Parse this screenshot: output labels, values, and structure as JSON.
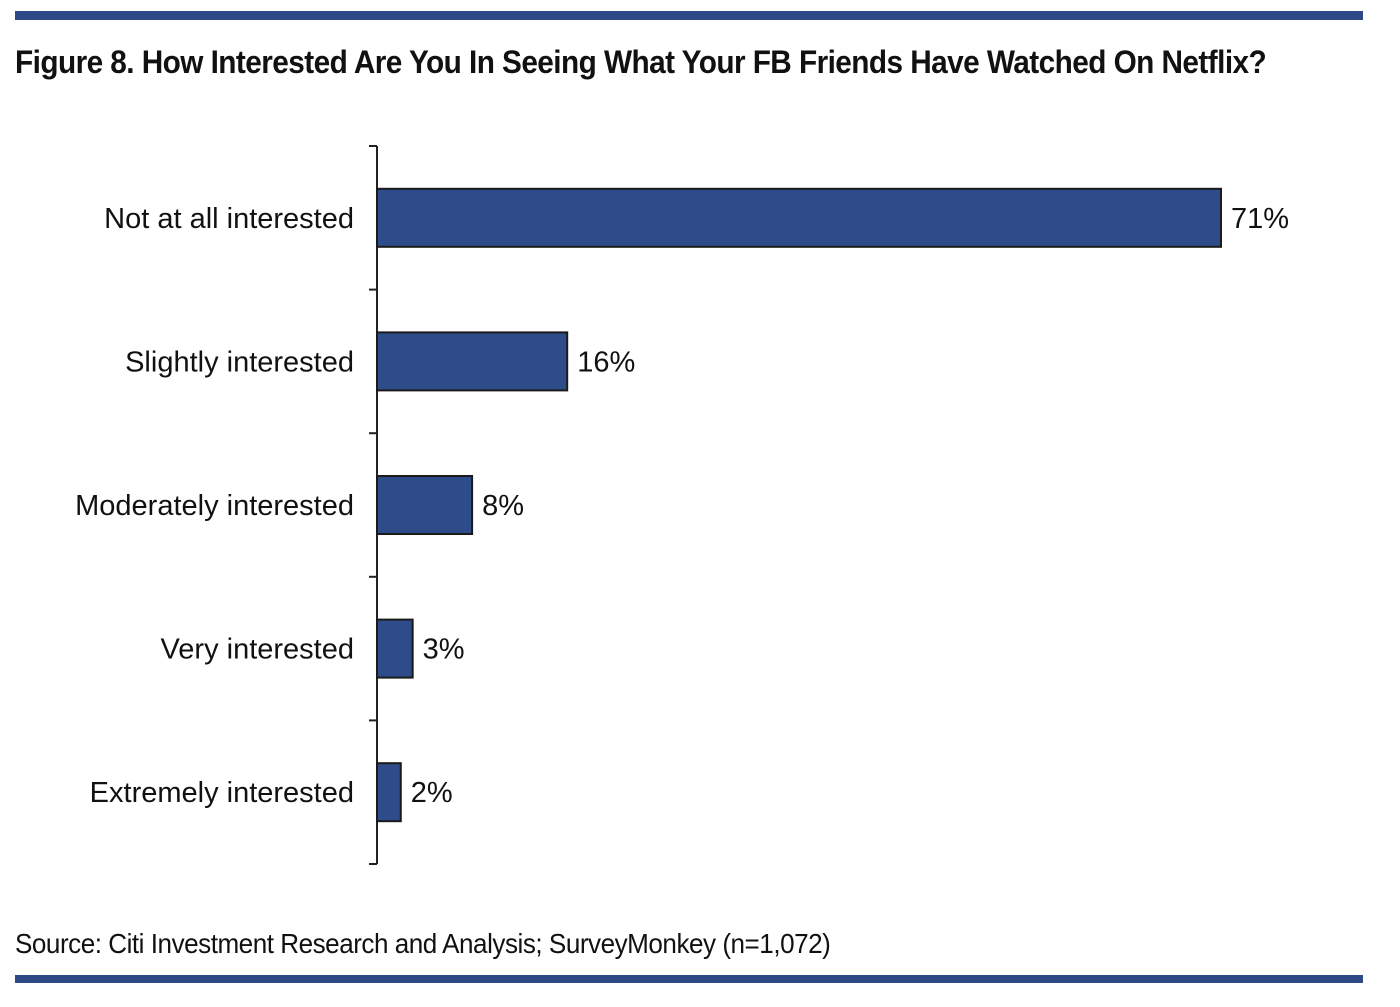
{
  "figure": {
    "title": "Figure 8. How Interested Are You In Seeing What Your FB Friends Have Watched On Netflix?",
    "source": "Source: Citi Investment Research and Analysis; SurveyMonkey (n=1,072)"
  },
  "colors": {
    "rule": "#2d4a87",
    "bar": "#2f4c8a",
    "bar_edge": "#1a1a1a",
    "axis": "#222222"
  },
  "chart_data": {
    "type": "bar",
    "orientation": "horizontal",
    "categories": [
      "Not at all interested",
      "Slightly interested",
      "Moderately interested",
      "Very interested",
      "Extremely interested"
    ],
    "values": [
      71,
      16,
      8,
      3,
      2
    ],
    "value_labels": [
      "71%",
      "16%",
      "8%",
      "3%",
      "2%"
    ],
    "title": "Figure 8. How Interested Are You In Seeing What Your FB Friends Have Watched On Netflix?",
    "xlabel": "",
    "ylabel": "",
    "xlim": [
      0,
      71
    ],
    "grid": false,
    "legend": "none"
  }
}
